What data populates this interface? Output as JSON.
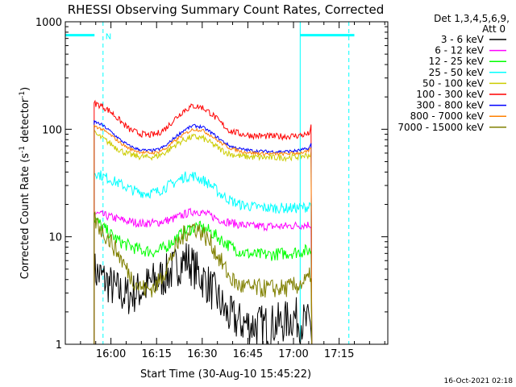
{
  "chart_data": {
    "type": "line",
    "title": "RHESSI Observing Summary Count Rates, Corrected",
    "xlabel": "Start Time (30-Aug-10 15:45:22)",
    "ylabel_parts": [
      "Corrected Count Rate (s",
      "-1",
      " detector",
      "-1",
      ")"
    ],
    "x_ticks": [
      "16:00",
      "16:15",
      "16:30",
      "16:45",
      "17:00",
      "17:15"
    ],
    "x_tick_minutes": [
      15,
      30,
      45,
      60,
      75,
      90
    ],
    "y_ticks": [
      "1",
      "10",
      "100",
      "1000"
    ],
    "y_tick_values": [
      1,
      10,
      100,
      1000
    ],
    "ylim": [
      1,
      1000
    ],
    "yscale": "log",
    "xlim_minutes": [
      0,
      106
    ],
    "legend_header": [
      "Det 1,3,4,5,6,9,",
      "Att 0"
    ],
    "attenuator_marker": "N",
    "footer_date": "16-Oct-2021 02:18",
    "series": [
      {
        "name": "3 - 6 keV",
        "color": "#000000",
        "points": [
          [
            9.5,
            4.8
          ],
          [
            12,
            4.2
          ],
          [
            16,
            3.3
          ],
          [
            20,
            2.8
          ],
          [
            25,
            3.2
          ],
          [
            28,
            3.7
          ],
          [
            32,
            4.2
          ],
          [
            35,
            4.8
          ],
          [
            38,
            5.8
          ],
          [
            40,
            6.2
          ],
          [
            43,
            4.8
          ],
          [
            47,
            3.6
          ],
          [
            50,
            2.7
          ],
          [
            53,
            1.9
          ],
          [
            57,
            1.6
          ],
          [
            62,
            1.5
          ],
          [
            67,
            1.5
          ],
          [
            72,
            1.6
          ],
          [
            75,
            1.8
          ],
          [
            78,
            1.6
          ],
          [
            81,
            1.5
          ]
        ],
        "noise": 0.2,
        "floor": 1
      },
      {
        "name": "6 - 12 keV",
        "color": "#ff00ff",
        "points": [
          [
            9.5,
            16.5
          ],
          [
            12,
            16
          ],
          [
            16,
            15
          ],
          [
            20,
            14
          ],
          [
            25,
            13.3
          ],
          [
            30,
            13.5
          ],
          [
            35,
            14.5
          ],
          [
            40,
            16.5
          ],
          [
            43,
            17.5
          ],
          [
            47,
            16
          ],
          [
            52,
            14
          ],
          [
            57,
            13
          ],
          [
            62,
            12.5
          ],
          [
            67,
            12.5
          ],
          [
            72,
            12.5
          ],
          [
            75,
            12.7
          ],
          [
            81,
            13
          ]
        ],
        "noise": 0.04
      },
      {
        "name": "12 - 25 keV",
        "color": "#00ff00",
        "points": [
          [
            9.5,
            15
          ],
          [
            12,
            12.5
          ],
          [
            15,
            10.5
          ],
          [
            18,
            9
          ],
          [
            21,
            8.2
          ],
          [
            25,
            7.5
          ],
          [
            30,
            7.2
          ],
          [
            33,
            8
          ],
          [
            36,
            9.5
          ],
          [
            40,
            11.5
          ],
          [
            43,
            12.5
          ],
          [
            47,
            11.5
          ],
          [
            51,
            9.5
          ],
          [
            54,
            8.2
          ],
          [
            58,
            7.2
          ],
          [
            62,
            6.8
          ],
          [
            67,
            6.8
          ],
          [
            72,
            7
          ],
          [
            76,
            7.2
          ],
          [
            81,
            7.5
          ]
        ],
        "noise": 0.06
      },
      {
        "name": "25 - 50 keV",
        "color": "#00ffff",
        "points": [
          [
            9.5,
            40
          ],
          [
            12,
            37
          ],
          [
            15,
            34
          ],
          [
            18,
            31
          ],
          [
            21,
            28
          ],
          [
            24,
            26
          ],
          [
            27,
            25.5
          ],
          [
            30,
            26
          ],
          [
            33,
            29
          ],
          [
            36,
            32
          ],
          [
            39,
            36
          ],
          [
            42,
            37
          ],
          [
            45,
            34
          ],
          [
            48,
            30
          ],
          [
            51,
            25
          ],
          [
            54,
            22
          ],
          [
            57,
            20
          ],
          [
            62,
            19
          ],
          [
            67,
            18.5
          ],
          [
            72,
            18.5
          ],
          [
            76,
            18.5
          ],
          [
            80,
            19
          ],
          [
            81,
            22
          ]
        ],
        "noise": 0.05
      },
      {
        "name": "50 - 100 keV",
        "color": "#cccc00",
        "points": [
          [
            9.5,
            92
          ],
          [
            12,
            83
          ],
          [
            15,
            73
          ],
          [
            18,
            64
          ],
          [
            21,
            58
          ],
          [
            24,
            56
          ],
          [
            27,
            55
          ],
          [
            30,
            56
          ],
          [
            33,
            61
          ],
          [
            36,
            71
          ],
          [
            39,
            80
          ],
          [
            42,
            85
          ],
          [
            45,
            83
          ],
          [
            48,
            74
          ],
          [
            51,
            65
          ],
          [
            54,
            59
          ],
          [
            58,
            56
          ],
          [
            62,
            55
          ],
          [
            67,
            54.5
          ],
          [
            72,
            54.5
          ],
          [
            76,
            55.5
          ],
          [
            81,
            58
          ]
        ],
        "noise": 0.03
      },
      {
        "name": "100 - 300 keV",
        "color": "#ff0000",
        "points": [
          [
            9.5,
            175
          ],
          [
            12,
            165
          ],
          [
            15,
            145
          ],
          [
            18,
            120
          ],
          [
            21,
            100
          ],
          [
            24,
            92
          ],
          [
            27,
            88
          ],
          [
            30,
            90
          ],
          [
            33,
            102
          ],
          [
            36,
            125
          ],
          [
            39,
            150
          ],
          [
            42,
            165
          ],
          [
            45,
            160
          ],
          [
            48,
            140
          ],
          [
            51,
            115
          ],
          [
            54,
            97
          ],
          [
            58,
            90
          ],
          [
            62,
            87
          ],
          [
            67,
            86
          ],
          [
            72,
            86
          ],
          [
            76,
            87
          ],
          [
            80,
            90
          ],
          [
            81,
            108
          ]
        ],
        "noise": 0.03
      },
      {
        "name": "300 - 800 keV",
        "color": "#0000ff",
        "points": [
          [
            9.5,
            118
          ],
          [
            12,
            110
          ],
          [
            15,
            95
          ],
          [
            18,
            80
          ],
          [
            21,
            70
          ],
          [
            24,
            65
          ],
          [
            27,
            63
          ],
          [
            30,
            64
          ],
          [
            33,
            70
          ],
          [
            36,
            84
          ],
          [
            39,
            98
          ],
          [
            42,
            108
          ],
          [
            45,
            105
          ],
          [
            48,
            93
          ],
          [
            51,
            80
          ],
          [
            54,
            70
          ],
          [
            58,
            65
          ],
          [
            62,
            63
          ],
          [
            67,
            62
          ],
          [
            72,
            62
          ],
          [
            76,
            63
          ],
          [
            80,
            66
          ],
          [
            81,
            75
          ]
        ],
        "noise": 0.015
      },
      {
        "name": "800 - 7000 keV",
        "color": "#ff8000",
        "points": [
          [
            9.5,
            108
          ],
          [
            12,
            100
          ],
          [
            15,
            88
          ],
          [
            18,
            75
          ],
          [
            21,
            66
          ],
          [
            24,
            62
          ],
          [
            27,
            60
          ],
          [
            30,
            61
          ],
          [
            33,
            66
          ],
          [
            36,
            78
          ],
          [
            39,
            90
          ],
          [
            42,
            100
          ],
          [
            45,
            98
          ],
          [
            48,
            87
          ],
          [
            51,
            75
          ],
          [
            54,
            67
          ],
          [
            58,
            62
          ],
          [
            62,
            60
          ],
          [
            67,
            59
          ],
          [
            72,
            59
          ],
          [
            76,
            60
          ],
          [
            80,
            62
          ],
          [
            81,
            70
          ]
        ],
        "noise": 0.015
      },
      {
        "name": "7000 - 15000 keV",
        "color": "#808000",
        "points": [
          [
            9.5,
            14.5
          ],
          [
            12,
            11.5
          ],
          [
            15,
            9
          ],
          [
            18,
            6.5
          ],
          [
            21,
            4.5
          ],
          [
            24,
            3.5
          ],
          [
            27,
            3.2
          ],
          [
            30,
            3.5
          ],
          [
            33,
            5
          ],
          [
            36,
            7.5
          ],
          [
            39,
            10.5
          ],
          [
            42,
            12.5
          ],
          [
            45,
            11
          ],
          [
            48,
            8.5
          ],
          [
            51,
            6
          ],
          [
            54,
            4.2
          ],
          [
            57,
            3.5
          ],
          [
            62,
            3.3
          ],
          [
            67,
            3.3
          ],
          [
            72,
            3.3
          ],
          [
            76,
            3.5
          ],
          [
            80,
            4
          ],
          [
            81,
            5
          ]
        ],
        "noise": 0.09
      }
    ],
    "attenuator_segments": [
      [
        -5,
        9.6
      ],
      [
        77.2,
        95
      ]
    ],
    "attenuator_level": 750,
    "dashed_lines_minutes": [
      12.4,
      93.2
    ],
    "solid_line_minutes": [
      77.2
    ]
  }
}
